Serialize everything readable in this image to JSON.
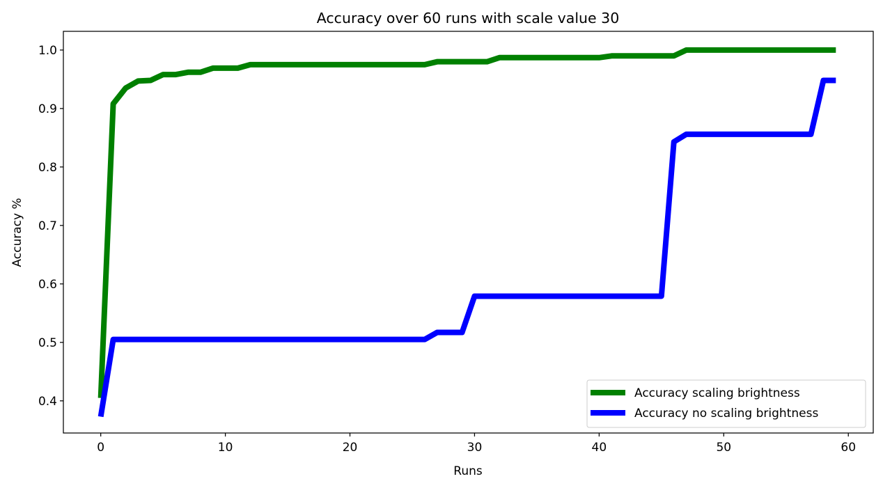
{
  "chart_data": {
    "type": "line",
    "title": "Accuracy over 60 runs with scale value 30",
    "xlabel": "Runs",
    "ylabel": "Accuracy %",
    "xlim": [
      -3,
      62
    ],
    "ylim": [
      0.345,
      1.032
    ],
    "xticks": [
      0,
      10,
      20,
      30,
      40,
      50,
      60
    ],
    "xtick_labels": [
      "0",
      "10",
      "20",
      "30",
      "40",
      "50",
      "60"
    ],
    "yticks": [
      0.4,
      0.5,
      0.6,
      0.7,
      0.8,
      0.9,
      1.0
    ],
    "ytick_labels": [
      "0.4",
      "0.5",
      "0.6",
      "0.7",
      "0.8",
      "0.9",
      "1.0"
    ],
    "grid": false,
    "legend_position": "lower-right",
    "x": [
      0,
      1,
      2,
      3,
      4,
      5,
      6,
      7,
      8,
      9,
      10,
      11,
      12,
      13,
      14,
      15,
      16,
      17,
      18,
      19,
      20,
      21,
      22,
      23,
      24,
      25,
      26,
      27,
      28,
      29,
      30,
      31,
      32,
      33,
      34,
      35,
      36,
      37,
      38,
      39,
      40,
      41,
      42,
      43,
      44,
      45,
      46,
      47,
      48,
      49,
      50,
      51,
      52,
      53,
      54,
      55,
      56,
      57,
      58,
      59
    ],
    "series": [
      {
        "name": "Accuracy scaling brightness",
        "color": "#008000",
        "values": [
          0.405,
          0.908,
          0.935,
          0.947,
          0.948,
          0.958,
          0.958,
          0.962,
          0.962,
          0.969,
          0.969,
          0.969,
          0.975,
          0.975,
          0.975,
          0.975,
          0.975,
          0.975,
          0.975,
          0.975,
          0.975,
          0.975,
          0.975,
          0.975,
          0.975,
          0.975,
          0.975,
          0.98,
          0.98,
          0.98,
          0.98,
          0.98,
          0.987,
          0.987,
          0.987,
          0.987,
          0.987,
          0.987,
          0.987,
          0.987,
          0.987,
          0.99,
          0.99,
          0.99,
          0.99,
          0.99,
          0.99,
          1.0,
          1.0,
          1.0,
          1.0,
          1.0,
          1.0,
          1.0,
          1.0,
          1.0,
          1.0,
          1.0,
          1.0,
          1.0
        ]
      },
      {
        "name": "Accuracy no scaling brightness",
        "color": "#0000ff",
        "values": [
          0.373,
          0.505,
          0.505,
          0.505,
          0.505,
          0.505,
          0.505,
          0.505,
          0.505,
          0.505,
          0.505,
          0.505,
          0.505,
          0.505,
          0.505,
          0.505,
          0.505,
          0.505,
          0.505,
          0.505,
          0.505,
          0.505,
          0.505,
          0.505,
          0.505,
          0.505,
          0.505,
          0.517,
          0.517,
          0.517,
          0.579,
          0.579,
          0.579,
          0.579,
          0.579,
          0.579,
          0.579,
          0.579,
          0.579,
          0.579,
          0.579,
          0.579,
          0.579,
          0.579,
          0.579,
          0.579,
          0.843,
          0.856,
          0.856,
          0.856,
          0.856,
          0.856,
          0.856,
          0.856,
          0.856,
          0.856,
          0.856,
          0.856,
          0.948,
          0.948
        ]
      }
    ]
  }
}
